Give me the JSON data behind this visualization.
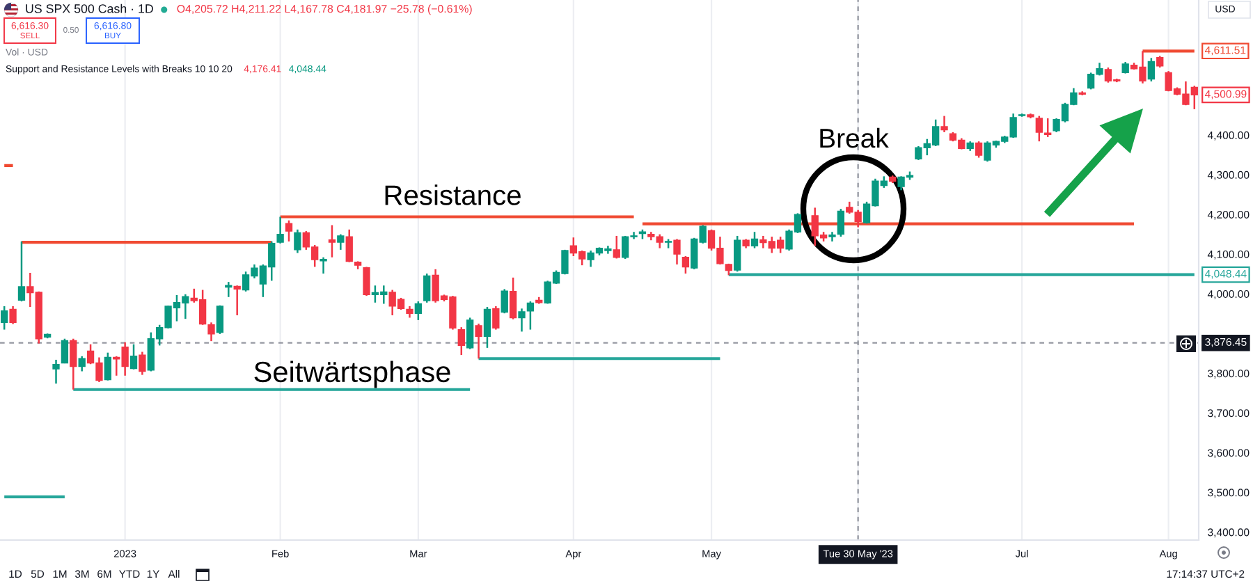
{
  "chart_data": {
    "type": "candlestick",
    "title": "US SPX 500 Cash · 1D",
    "subtitle": "O4,205.72 H4,211.22 L4,167.78 C4,181.97 −25.78 (−0.61%)",
    "categories": [
      null,
      null,
      null,
      null,
      null,
      null,
      null,
      null,
      null,
      null,
      null,
      null,
      null,
      null,
      "2023",
      null,
      null,
      null,
      null,
      null,
      null,
      null,
      null,
      null,
      null,
      null,
      null,
      null,
      null,
      null,
      null,
      null,
      "Feb",
      null,
      null,
      null,
      null,
      null,
      null,
      null,
      null,
      null,
      null,
      null,
      null,
      null,
      null,
      null,
      "Mar",
      null,
      null,
      null,
      null,
      null,
      null,
      null,
      null,
      null,
      null,
      null,
      null,
      null,
      null,
      null,
      null,
      null,
      "Apr",
      null,
      null,
      null,
      null,
      null,
      null,
      null,
      null,
      null,
      null,
      null,
      null,
      null,
      null,
      null,
      "May",
      null,
      null,
      null,
      null,
      null,
      null,
      null,
      null,
      null,
      null,
      null,
      null,
      null,
      null,
      null,
      null,
      "Tue 30 May '23",
      null,
      null,
      null,
      null,
      null,
      null,
      null,
      null,
      null,
      null,
      null,
      null,
      null,
      null,
      null,
      null,
      null,
      null,
      "Jul",
      null,
      null,
      null,
      null,
      null,
      null,
      null,
      null,
      null,
      null,
      null,
      null,
      null,
      null,
      null,
      null,
      "Aug",
      null,
      null,
      null
    ],
    "ohlc": [
      [
        3928,
        3969,
        3910,
        3957
      ],
      [
        3961,
        3969,
        3924,
        3928
      ],
      [
        3984,
        4132,
        3981,
        4018
      ],
      [
        4018,
        4053,
        3967,
        4003
      ],
      [
        4004,
        4006,
        3875,
        3887
      ],
      [
        3891,
        3900,
        3888,
        3898
      ],
      [
        3811,
        3834,
        3774,
        3822
      ],
      [
        3826,
        3887,
        3825,
        3882
      ],
      [
        3882,
        3887,
        3759,
        3817
      ],
      [
        3817,
        3843,
        3805,
        3837
      ],
      [
        3856,
        3873,
        3823,
        3826
      ],
      [
        3826,
        3840,
        3778,
        3782
      ],
      [
        3784,
        3852,
        3782,
        3840
      ],
      [
        3840,
        3843,
        3794,
        3836
      ],
      [
        3866,
        3878,
        3794,
        3817
      ],
      [
        3812,
        3873,
        3810,
        3843
      ],
      [
        3846,
        3854,
        3796,
        3805
      ],
      [
        3808,
        3903,
        3805,
        3887
      ],
      [
        3887,
        3922,
        3870,
        3915
      ],
      [
        3915,
        3970,
        3913,
        3969
      ],
      [
        3965,
        3997,
        3931,
        3978
      ],
      [
        3977,
        3999,
        3937,
        3993
      ],
      [
        3989,
        4013,
        3978,
        3983
      ],
      [
        3985,
        4010,
        3922,
        3924
      ],
      [
        3922,
        3928,
        3881,
        3899
      ],
      [
        3903,
        3971,
        3899,
        3969
      ],
      [
        4017,
        4030,
        3992,
        4021
      ],
      [
        4019,
        4021,
        3946,
        4012
      ],
      [
        4010,
        4056,
        4006,
        4048
      ],
      [
        4045,
        4074,
        4039,
        4065
      ],
      [
        4025,
        4074,
        3992,
        4070
      ],
      [
        4068,
        4132,
        4033,
        4127
      ],
      [
        4130,
        4194,
        4127,
        4150
      ],
      [
        4177,
        4185,
        4132,
        4158
      ],
      [
        4111,
        4162,
        4103,
        4154
      ],
      [
        4154,
        4158,
        4111,
        4118
      ],
      [
        4118,
        4123,
        4068,
        4086
      ],
      [
        4083,
        4092,
        4051,
        4087
      ],
      [
        4136,
        4173,
        4092,
        4130
      ],
      [
        4130,
        4150,
        4111,
        4146
      ],
      [
        4144,
        4162,
        4080,
        4082
      ],
      [
        4080,
        4082,
        4062,
        4072
      ],
      [
        4066,
        4068,
        3995,
        3998
      ],
      [
        3998,
        4021,
        3978,
        4003
      ],
      [
        3998,
        4021,
        3975,
        4005
      ],
      [
        4004,
        4010,
        3946,
        3969
      ],
      [
        3986,
        3990,
        3960,
        3963
      ],
      [
        3961,
        3969,
        3940,
        3951
      ],
      [
        3951,
        3981,
        3934,
        3975
      ],
      [
        3983,
        4051,
        3978,
        4045
      ],
      [
        4047,
        4062,
        3978,
        3983
      ],
      [
        3995,
        3998,
        3981,
        3986
      ],
      [
        3992,
        3995,
        3910,
        3914
      ],
      [
        3910,
        3916,
        3846,
        3870
      ],
      [
        3864,
        3940,
        3861,
        3934
      ],
      [
        3920,
        3925,
        3837,
        3893
      ],
      [
        3893,
        3967,
        3864,
        3961
      ],
      [
        3963,
        3969,
        3910,
        3914
      ],
      [
        3954,
        4012,
        3951,
        4007
      ],
      [
        4006,
        4041,
        3936,
        3940
      ],
      [
        3940,
        3963,
        3905,
        3955
      ],
      [
        3957,
        3981,
        3910,
        3977
      ],
      [
        3984,
        3992,
        3975,
        3978
      ],
      [
        3977,
        4033,
        3975,
        4030
      ],
      [
        4027,
        4059,
        4025,
        4054
      ],
      [
        4051,
        4111,
        4049,
        4109
      ],
      [
        4121,
        4142,
        4095,
        4103
      ],
      [
        4106,
        4109,
        4072,
        4088
      ],
      [
        4086,
        4109,
        4068,
        4103
      ],
      [
        4103,
        4117,
        4097,
        4115
      ],
      [
        4109,
        4121,
        4101,
        4113
      ],
      [
        4111,
        4146,
        4089,
        4092
      ],
      [
        4092,
        4146,
        4088,
        4144
      ],
      [
        4144,
        4156,
        4138,
        4146
      ],
      [
        4152,
        4162,
        4138,
        4156
      ],
      [
        4150,
        4156,
        4135,
        4144
      ],
      [
        4144,
        4150,
        4115,
        4130
      ],
      [
        4130,
        4138,
        4115,
        4132
      ],
      [
        4135,
        4138,
        4074,
        4100
      ],
      [
        4092,
        4095,
        4051,
        4068
      ],
      [
        4065,
        4141,
        4062,
        4138
      ],
      [
        4130,
        4173,
        4127,
        4170
      ],
      [
        4159,
        4162,
        4109,
        4115
      ],
      [
        4115,
        4144,
        4074,
        4076
      ],
      [
        4074,
        4076,
        4047,
        4059
      ],
      [
        4060,
        4146,
        4056,
        4135
      ],
      [
        4135,
        4138,
        4115,
        4121
      ],
      [
        4121,
        4156,
        4115,
        4138
      ],
      [
        4136,
        4146,
        4115,
        4129
      ],
      [
        4132,
        4144,
        4103,
        4115
      ],
      [
        4135,
        4144,
        4103,
        4115
      ],
      [
        4113,
        4162,
        4109,
        4158
      ],
      [
        4156,
        4203,
        4153,
        4200
      ],
      null,
      [
        4197,
        4217,
        4121,
        4146
      ],
      [
        4148,
        4156,
        4132,
        4141
      ],
      [
        4144,
        4156,
        4132,
        4148
      ],
      [
        4150,
        4214,
        4144,
        4208
      ],
      [
        4218,
        4232,
        4202,
        4206
      ],
      [
        4205.72,
        4211.22,
        4167.78,
        4181.97
      ],
      [
        4179,
        4232,
        4177,
        4226
      ],
      [
        4222,
        4290,
        4220,
        4284
      ],
      [
        4273,
        4296,
        4267,
        4284
      ],
      [
        4294,
        4298,
        4279,
        4284
      ],
      [
        4270,
        4296,
        4261,
        4294
      ],
      [
        4294,
        4308,
        4287,
        4298
      ],
      [
        4340,
        4372,
        4337,
        4368
      ],
      [
        4368,
        4390,
        4349,
        4378
      ],
      [
        4375,
        4439,
        4372,
        4421
      ],
      [
        4421,
        4448,
        4407,
        4413
      ],
      [
        4403,
        4407,
        4384,
        4387
      ],
      [
        4387,
        4392,
        4364,
        4366
      ],
      [
        4366,
        4384,
        4360,
        4380
      ],
      [
        4380,
        4384,
        4343,
        4349
      ],
      [
        4337,
        4384,
        4333,
        4380
      ],
      [
        4375,
        4386,
        4368,
        4384
      ],
      [
        4384,
        4398,
        4380,
        4395
      ],
      [
        4395,
        4454,
        4393,
        4444
      ],
      [
        4449,
        4454,
        4446,
        4451
      ],
      [
        4451,
        4454,
        4442,
        4446
      ],
      [
        4442,
        4448,
        4384,
        4407
      ],
      [
        4405,
        4442,
        4395,
        4401
      ],
      [
        4411,
        4442,
        4407,
        4439
      ],
      [
        4436,
        4481,
        4432,
        4477
      ],
      [
        4477,
        4518,
        4475,
        4506
      ],
      [
        4506,
        4510,
        4500,
        4503
      ],
      [
        4518,
        4557,
        4515,
        4553
      ],
      [
        4553,
        4582,
        4550,
        4567
      ],
      [
        4565,
        4570,
        4532,
        4536
      ],
      [
        4539,
        4542,
        4533,
        4536
      ],
      [
        4557,
        4584,
        4555,
        4579
      ],
      [
        4576,
        4582,
        4565,
        4567
      ],
      [
        4571,
        4611.51,
        4530,
        4536
      ],
      [
        4541,
        4594,
        4535,
        4585
      ],
      [
        4595,
        4599,
        4570,
        4574
      ],
      [
        4557,
        4561,
        4510,
        4512
      ],
      [
        4516,
        4520,
        4500,
        4503
      ],
      [
        4503,
        4535,
        4475,
        4477
      ],
      [
        4520,
        4524,
        4465,
        4500.99
      ]
    ],
    "colors": [
      "#089981",
      "#f23645",
      "#089981",
      "#f23645",
      "#f23645",
      "#089981",
      "#089981",
      "#089981",
      "#f23645",
      "#089981",
      "#f23645",
      "#f23645",
      "#089981",
      "#f23645",
      "#f23645",
      "#089981",
      "#f23645",
      "#089981",
      "#089981",
      "#089981",
      "#089981",
      "#089981",
      "#f23645",
      "#f23645",
      "#f23645",
      "#089981",
      "#089981",
      "#f23645",
      "#089981",
      "#089981",
      "#089981",
      "#089981",
      "#089981",
      "#f23645",
      "#089981",
      "#f23645",
      "#f23645",
      "#089981",
      "#f23645",
      "#089981",
      "#f23645",
      "#f23645",
      "#f23645",
      "#089981",
      "#089981",
      "#f23645",
      "#f23645",
      "#f23645",
      "#089981",
      "#089981",
      "#f23645",
      "#f23645",
      "#f23645",
      "#f23645",
      "#089981",
      "#f23645",
      "#089981",
      "#f23645",
      "#089981",
      "#f23645",
      "#089981",
      "#089981",
      "#f23645",
      "#089981",
      "#089981",
      "#089981",
      "#f23645",
      "#f23645",
      "#089981",
      "#089981",
      "#089981",
      "#f23645",
      "#089981",
      "#089981",
      "#089981",
      "#f23645",
      "#f23645",
      "#089981",
      "#f23645",
      "#f23645",
      "#089981",
      "#089981",
      "#f23645",
      "#f23645",
      "#f23645",
      "#089981",
      "#f23645",
      "#089981",
      "#f23645",
      "#f23645",
      "#f23645",
      "#089981",
      "#089981",
      null,
      "#f23645",
      "#f23645",
      "#089981",
      "#089981",
      "#f23645",
      "#f23645",
      "#089981",
      "#089981",
      "#089981",
      "#f23645",
      "#089981",
      "#089981",
      "#089981",
      "#089981",
      "#089981",
      "#f23645",
      "#f23645",
      "#f23645",
      "#089981",
      "#f23645",
      "#089981",
      "#089981",
      "#089981",
      "#089981",
      "#089981",
      "#f23645",
      "#f23645",
      "#f23645",
      "#089981",
      "#089981",
      "#089981",
      "#f23645",
      "#089981",
      "#089981",
      "#f23645",
      "#f23645",
      "#089981",
      "#f23645",
      "#f23645",
      "#089981",
      "#f23645",
      "#f23645",
      "#f23645",
      "#f23645",
      "#f23645"
    ],
    "value_labels": [
      null,
      null,
      null,
      null,
      null,
      null,
      null,
      null,
      null,
      null,
      null,
      null,
      null,
      null,
      null,
      null,
      null,
      null,
      null,
      null,
      null,
      null,
      null,
      null,
      null,
      null,
      null,
      null,
      null,
      null,
      null,
      null,
      null,
      null,
      null,
      null,
      null,
      null,
      null,
      null,
      null,
      null,
      null,
      null,
      null,
      null,
      null,
      null,
      null,
      null,
      null,
      null,
      null,
      null,
      null,
      null,
      null,
      null,
      null,
      null,
      null,
      null,
      null,
      null,
      null,
      null,
      null,
      null,
      null,
      null,
      null,
      null,
      null,
      null,
      null,
      null,
      null,
      null,
      null,
      null,
      null,
      null,
      null,
      null,
      null,
      null,
      null,
      null,
      null,
      null,
      null,
      null,
      null,
      null,
      null,
      null,
      null,
      null,
      null,
      null,
      null,
      null,
      null,
      null,
      null,
      null,
      null,
      null,
      null,
      null,
      null,
      null,
      null,
      null,
      null,
      null,
      null,
      null,
      null,
      null,
      null,
      null,
      null,
      null,
      null,
      null,
      null,
      null,
      null,
      null,
      null,
      null,
      null,
      null,
      null,
      null,
      null,
      null,
      "4,500.99"
    ],
    "series": [
      {
        "type": "line",
        "color": "#f04a32",
        "values": [
          4323,
          4323,
          null,
          null,
          null,
          null,
          null,
          null,
          null,
          null,
          null,
          null,
          null,
          null,
          null,
          null,
          null,
          null,
          null,
          null,
          null,
          null,
          null,
          null,
          null,
          null,
          null,
          null,
          null,
          null,
          null,
          null,
          4194,
          4194,
          4194,
          4194,
          4194,
          4194,
          4194,
          4194,
          4194,
          4194,
          4194,
          4194,
          4194,
          4194,
          4194,
          4194,
          4194,
          4194,
          4194,
          4194,
          4194,
          4194,
          4194,
          4194,
          4194,
          4194,
          4194,
          4194,
          4194,
          4194,
          4194,
          4194,
          4194,
          4194,
          4194,
          4194,
          4194,
          4194,
          4194,
          4194,
          4194,
          4194,
          null,
          null,
          null,
          null,
          null,
          null,
          null,
          null,
          null,
          null,
          null,
          null,
          null,
          null,
          null,
          null,
          null,
          null,
          null,
          null,
          null,
          null,
          null,
          null,
          null,
          null,
          null,
          null,
          null,
          null,
          null,
          null,
          null,
          null,
          null,
          null,
          null,
          null,
          null,
          null,
          null,
          null,
          null,
          null,
          null,
          null,
          null,
          null,
          null,
          null,
          null,
          null,
          null,
          null,
          null,
          null,
          null,
          null,
          4611.51,
          4611.51,
          4611.51,
          4611.51,
          4611.51,
          4611.51,
          4611.51
        ],
        "value_labels": [
          null,
          null,
          null,
          null,
          null,
          null,
          null,
          null,
          null,
          null,
          null,
          null,
          null,
          null,
          null,
          null,
          null,
          null,
          null,
          null,
          null,
          null,
          null,
          null,
          null,
          null,
          null,
          null,
          null,
          null,
          null,
          null,
          null,
          null,
          null,
          null,
          null,
          null,
          null,
          null,
          null,
          null,
          null,
          null,
          null,
          null,
          null,
          null,
          null,
          null,
          null,
          null,
          null,
          null,
          null,
          null,
          null,
          null,
          null,
          null,
          null,
          null,
          null,
          null,
          null,
          null,
          null,
          null,
          null,
          null,
          null,
          null,
          null,
          null,
          null,
          null,
          null,
          null,
          null,
          null,
          null,
          null,
          null,
          null,
          null,
          null,
          null,
          null,
          null,
          null,
          null,
          null,
          null,
          null,
          null,
          null,
          null,
          null,
          null,
          null,
          null,
          null,
          null,
          null,
          null,
          null,
          null,
          null,
          null,
          null,
          null,
          null,
          null,
          null,
          null,
          null,
          null,
          null,
          null,
          null,
          null,
          null,
          null,
          null,
          null,
          null,
          null,
          null,
          null,
          null,
          null,
          null,
          null,
          null,
          null,
          null,
          null,
          null,
          "4,611.51"
        ]
      },
      {
        "type": "line",
        "color": "#f04a32",
        "values": [
          null,
          null,
          4130,
          4130,
          4130,
          4130,
          4130,
          4130,
          4130,
          4130,
          4130,
          4130,
          4130,
          4130,
          4130,
          4130,
          4130,
          4130,
          4130,
          4130,
          4130,
          4130,
          4130,
          4130,
          4130,
          4130,
          4130,
          4130,
          4130,
          4130,
          4130,
          4130,
          null,
          null,
          null,
          null,
          null,
          null,
          null,
          null,
          null,
          null,
          null,
          null,
          null,
          null,
          null,
          null,
          null,
          null,
          null,
          null,
          null,
          null,
          null,
          null,
          null,
          null,
          null,
          null,
          null,
          null,
          null,
          null,
          null,
          null,
          null,
          null,
          null,
          null,
          null,
          null,
          null,
          null,
          4176.41,
          4176.41,
          4176.41,
          4176.41,
          4176.41,
          4176.41,
          4176.41,
          4176.41,
          4176.41,
          4176.41,
          4176.41,
          4176.41,
          4176.41,
          4176.41,
          4176.41,
          4176.41,
          4176.41,
          4176.41,
          4176.41,
          4176.41,
          4176.41,
          4176.41,
          4176.41,
          4176.41,
          4176.41,
          4176.41,
          4176.41,
          4176.41,
          4176.41,
          4176.41,
          4176.41,
          4176.41,
          4176.41,
          4176.41,
          4176.41,
          4176.41,
          4176.41,
          4176.41,
          4176.41,
          4176.41,
          4176.41,
          4176.41,
          4176.41,
          4176.41,
          4176.41,
          4176.41,
          4176.41,
          4176.41,
          4176.41,
          4176.41,
          4176.41,
          4176.41,
          4176.41,
          4176.41,
          4176.41,
          4176.41,
          4176.41,
          4176.41,
          null,
          null,
          null,
          null,
          null,
          null,
          null
        ]
      },
      {
        "type": "line",
        "color": "#26a69a",
        "values": [
          3489,
          3489,
          3489,
          3489,
          3489,
          3489,
          3489,
          3489,
          null,
          null,
          null,
          null,
          null,
          null,
          null,
          null,
          null,
          null,
          null,
          null,
          null,
          null,
          null,
          null,
          null,
          null,
          null,
          null,
          null,
          null,
          null,
          null,
          null,
          null,
          null,
          null,
          null,
          null,
          null,
          null,
          null,
          null,
          null,
          null,
          null,
          null,
          null,
          null,
          null,
          null,
          null,
          null,
          null,
          null,
          null,
          3837,
          3837,
          3837,
          3837,
          3837,
          3837,
          3837,
          3837,
          3837,
          3837,
          3837,
          3837,
          3837,
          3837,
          3837,
          3837,
          3837,
          3837,
          3837,
          3837,
          3837,
          3837,
          3837,
          3837,
          3837,
          3837,
          3837,
          3837,
          3837,
          null,
          null,
          null,
          null,
          null,
          null,
          null,
          null,
          null,
          null,
          null,
          null,
          null,
          null,
          null,
          null,
          null,
          null,
          null,
          null,
          null,
          null,
          null,
          null,
          null,
          null,
          null,
          null,
          null,
          null,
          null,
          null,
          null,
          null,
          null,
          null,
          null,
          null,
          null,
          null,
          null,
          null,
          null,
          null,
          null,
          null,
          null,
          null,
          null,
          null,
          null,
          null,
          null,
          null,
          null
        ]
      },
      {
        "type": "line",
        "color": "#26a69a",
        "values": [
          null,
          null,
          null,
          null,
          null,
          null,
          null,
          null,
          3759,
          3759,
          3759,
          3759,
          3759,
          3759,
          3759,
          3759,
          3759,
          3759,
          3759,
          3759,
          3759,
          3759,
          3759,
          3759,
          3759,
          3759,
          3759,
          3759,
          3759,
          3759,
          3759,
          3759,
          3759,
          3759,
          3759,
          3759,
          3759,
          3759,
          3759,
          3759,
          3759,
          3759,
          3759,
          3759,
          3759,
          3759,
          3759,
          3759,
          3759,
          3759,
          3759,
          3759,
          3759,
          3759,
          3759,
          null,
          null,
          null,
          null,
          null,
          null,
          null,
          null,
          null,
          null,
          null,
          null,
          null,
          null,
          null,
          null,
          null,
          null,
          null,
          null,
          null,
          null,
          null,
          null,
          null,
          null,
          null,
          null,
          null,
          4048.44,
          4048.44,
          4048.44,
          4048.44,
          4048.44,
          4048.44,
          4048.44,
          4048.44,
          4048.44,
          4048.44,
          4048.44,
          4048.44,
          4048.44,
          4048.44,
          4048.44,
          4048.44,
          4048.44,
          4048.44,
          4048.44,
          4048.44,
          4048.44,
          4048.44,
          4048.44,
          4048.44,
          4048.44,
          4048.44,
          4048.44,
          4048.44,
          4048.44,
          4048.44,
          4048.44,
          4048.44,
          4048.44,
          4048.44,
          4048.44,
          4048.44,
          4048.44,
          4048.44,
          4048.44,
          4048.44,
          4048.44,
          4048.44,
          4048.44,
          4048.44,
          4048.44,
          4048.44,
          4048.44,
          4048.44,
          4048.44,
          4048.44,
          4048.44,
          4048.44,
          4048.44,
          4048.44,
          4048.44
        ],
        "value_labels": [
          null,
          null,
          null,
          null,
          null,
          null,
          null,
          null,
          null,
          null,
          null,
          null,
          null,
          null,
          null,
          null,
          null,
          null,
          null,
          null,
          null,
          null,
          null,
          null,
          null,
          null,
          null,
          null,
          null,
          null,
          null,
          null,
          null,
          null,
          null,
          null,
          null,
          null,
          null,
          null,
          null,
          null,
          null,
          null,
          null,
          null,
          null,
          null,
          null,
          null,
          null,
          null,
          null,
          null,
          null,
          null,
          null,
          null,
          null,
          null,
          null,
          null,
          null,
          null,
          null,
          null,
          null,
          null,
          null,
          null,
          null,
          null,
          null,
          null,
          null,
          null,
          null,
          null,
          null,
          null,
          null,
          null,
          null,
          null,
          null,
          null,
          null,
          null,
          null,
          null,
          null,
          null,
          null,
          null,
          null,
          null,
          null,
          null,
          null,
          null,
          null,
          null,
          null,
          null,
          null,
          null,
          null,
          null,
          null,
          null,
          null,
          null,
          null,
          null,
          null,
          null,
          null,
          null,
          null,
          null,
          null,
          null,
          null,
          null,
          null,
          null,
          null,
          null,
          null,
          null,
          null,
          null,
          null,
          null,
          null,
          null,
          null,
          null,
          "4,048.44"
        ]
      }
    ],
    "ylim": [
      3380,
      4740
    ],
    "yticks": [
      {
        "value": 3400,
        "label": "3,400.00"
      },
      {
        "value": 3500,
        "label": "3,500.00"
      },
      {
        "value": 3600,
        "label": "3,600.00"
      },
      {
        "value": 3700,
        "label": "3,700.00"
      },
      {
        "value": 3800,
        "label": "3,800.00"
      },
      {
        "value": 4000,
        "label": "4,000.00"
      },
      {
        "value": 4100,
        "label": "4,100.00"
      },
      {
        "value": 4200,
        "label": "4,200.00"
      },
      {
        "value": 4300,
        "label": "4,300.00"
      },
      {
        "value": 4400,
        "label": "4,400.00"
      }
    ],
    "grid": "x",
    "ref_lines": [
      {
        "axis": "y",
        "value": 3876.45,
        "label": "3,876.45",
        "color": "#9598a1",
        "line_style": "dashed"
      },
      {
        "axis": "x",
        "value": "Tue 30 May '23",
        "color": "#9598a1",
        "line_style": "dashed"
      }
    ],
    "annotations": [
      "6,616.30",
      "SELL",
      "0.50",
      "6,616.80",
      "BUY",
      "Vol · USD",
      "Support and Resistance Levels with Breaks 10 10 20",
      "4,176.41",
      "4,048.44",
      "USD",
      "Resistance",
      "Break",
      "Seitwärtsphase",
      "1D",
      "5D",
      "1M",
      "3M",
      "6M",
      "YTD",
      "1Y",
      "All",
      "17:14:37 UTC+2"
    ]
  }
}
